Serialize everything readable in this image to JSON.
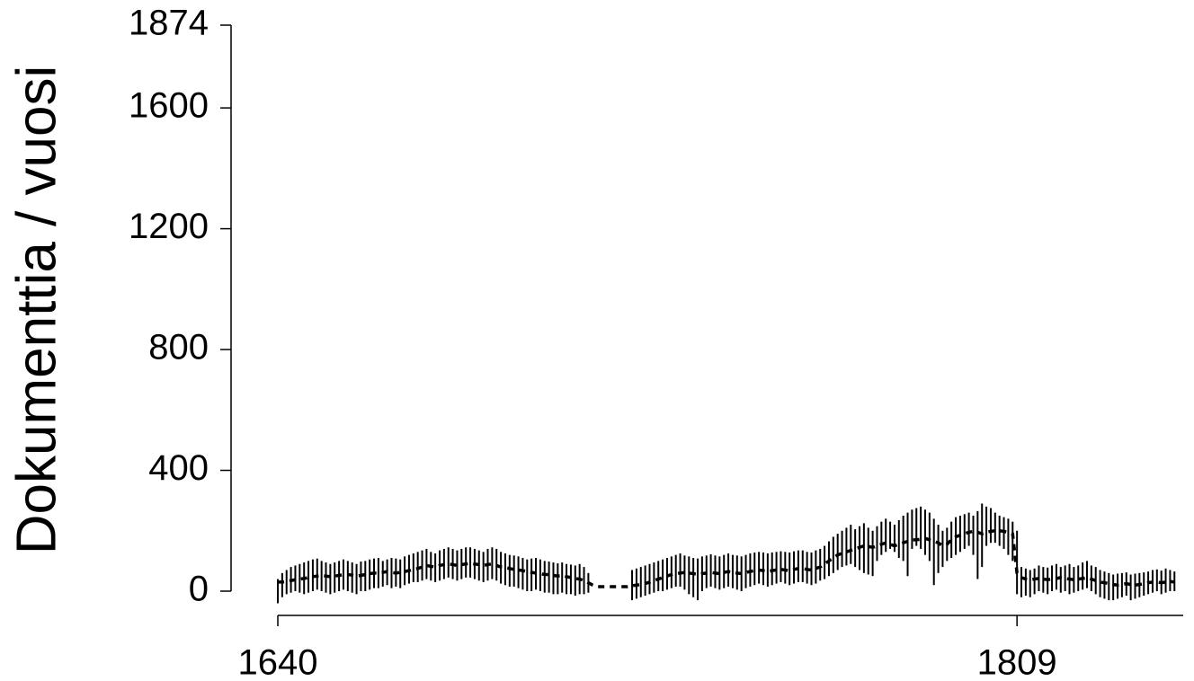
{
  "chart_data": {
    "type": "errorline",
    "y_label": "Dokumenttia / vuosi",
    "xlim": [
      1640,
      1847
    ],
    "xticks": [
      1640,
      1809
    ],
    "ylim": [
      0,
      1874
    ],
    "yticks": [
      0,
      400,
      800,
      1200,
      1600,
      1874
    ],
    "color": "#000000",
    "x": [
      1640,
      1641,
      1642,
      1643,
      1644,
      1645,
      1646,
      1647,
      1648,
      1649,
      1650,
      1651,
      1652,
      1653,
      1654,
      1655,
      1656,
      1657,
      1658,
      1659,
      1660,
      1661,
      1662,
      1663,
      1664,
      1665,
      1666,
      1667,
      1668,
      1669,
      1670,
      1671,
      1672,
      1673,
      1674,
      1675,
      1676,
      1677,
      1678,
      1679,
      1680,
      1681,
      1682,
      1683,
      1684,
      1685,
      1686,
      1687,
      1688,
      1689,
      1690,
      1691,
      1692,
      1693,
      1694,
      1695,
      1696,
      1697,
      1698,
      1699,
      1700,
      1701,
      1702,
      1703,
      1704,
      1705,
      1706,
      1707,
      1708,
      1709,
      1710,
      1711,
      1712,
      1713,
      1714,
      1715,
      1716,
      1717,
      1718,
      1719,
      1720,
      1721,
      1722,
      1723,
      1724,
      1725,
      1726,
      1727,
      1728,
      1729,
      1730,
      1731,
      1732,
      1733,
      1734,
      1735,
      1736,
      1737,
      1738,
      1739,
      1740,
      1741,
      1742,
      1743,
      1744,
      1745,
      1746,
      1747,
      1748,
      1749,
      1750,
      1751,
      1752,
      1753,
      1754,
      1755,
      1756,
      1757,
      1758,
      1759,
      1760,
      1761,
      1762,
      1763,
      1764,
      1765,
      1766,
      1767,
      1768,
      1769,
      1770,
      1771,
      1772,
      1773,
      1774,
      1775,
      1776,
      1777,
      1778,
      1779,
      1780,
      1781,
      1782,
      1783,
      1784,
      1785,
      1786,
      1787,
      1788,
      1789,
      1790,
      1791,
      1792,
      1793,
      1794,
      1795,
      1796,
      1797,
      1798,
      1799,
      1800,
      1801,
      1802,
      1803,
      1804,
      1805,
      1806,
      1807,
      1808,
      1809,
      1810,
      1811,
      1812,
      1813,
      1814,
      1815,
      1816,
      1817,
      1818,
      1819,
      1820,
      1821,
      1822,
      1823,
      1824,
      1825,
      1826,
      1827,
      1828,
      1829,
      1830,
      1831,
      1832,
      1833,
      1834,
      1835,
      1836,
      1837,
      1838,
      1839,
      1840,
      1841,
      1842,
      1843,
      1844,
      1845
    ],
    "values": [
      30,
      30,
      32,
      35,
      38,
      40,
      42,
      45,
      48,
      50,
      52,
      50,
      48,
      50,
      52,
      55,
      55,
      53,
      50,
      52,
      55,
      58,
      60,
      60,
      62,
      65,
      62,
      60,
      62,
      65,
      68,
      72,
      75,
      80,
      85,
      82,
      80,
      85,
      88,
      90,
      88,
      85,
      88,
      90,
      92,
      90,
      88,
      85,
      88,
      90,
      85,
      80,
      78,
      75,
      72,
      70,
      68,
      65,
      62,
      60,
      58,
      55,
      55,
      52,
      50,
      52,
      48,
      45,
      42,
      40,
      35,
      28,
      20,
      15,
      15,
      15,
      15,
      15,
      15,
      15,
      15,
      18,
      20,
      22,
      25,
      30,
      35,
      40,
      45,
      50,
      55,
      58,
      60,
      62,
      60,
      58,
      55,
      58,
      60,
      62,
      60,
      58,
      62,
      65,
      62,
      60,
      58,
      62,
      65,
      68,
      70,
      68,
      65,
      68,
      70,
      72,
      70,
      68,
      72,
      75,
      75,
      72,
      70,
      75,
      80,
      90,
      100,
      110,
      120,
      125,
      130,
      135,
      140,
      145,
      150,
      148,
      145,
      150,
      155,
      160,
      155,
      150,
      155,
      160,
      165,
      170,
      170,
      172,
      175,
      170,
      165,
      160,
      150,
      155,
      170,
      180,
      185,
      190,
      195,
      198,
      195,
      190,
      195,
      198,
      200,
      200,
      198,
      195,
      190,
      60,
      45,
      40,
      38,
      40,
      42,
      40,
      38,
      40,
      42,
      45,
      42,
      40,
      38,
      40,
      42,
      45,
      40,
      35,
      30,
      28,
      25,
      22,
      20,
      22,
      25,
      22,
      20,
      22,
      25,
      28,
      30,
      30,
      28,
      30,
      32,
      30
    ],
    "highs": [
      40,
      60,
      70,
      80,
      85,
      90,
      95,
      100,
      105,
      108,
      100,
      95,
      90,
      95,
      100,
      105,
      100,
      95,
      90,
      98,
      100,
      105,
      108,
      110,
      100,
      105,
      110,
      108,
      105,
      115,
      120,
      125,
      130,
      135,
      140,
      130,
      125,
      135,
      140,
      145,
      140,
      135,
      140,
      145,
      145,
      140,
      135,
      130,
      140,
      145,
      140,
      130,
      125,
      120,
      118,
      115,
      110,
      105,
      108,
      110,
      105,
      100,
      98,
      95,
      92,
      95,
      90,
      88,
      85,
      90,
      80,
      60,
      null,
      null,
      null,
      null,
      null,
      null,
      null,
      null,
      null,
      70,
      75,
      80,
      85,
      90,
      95,
      100,
      105,
      110,
      115,
      120,
      125,
      118,
      115,
      110,
      108,
      115,
      118,
      122,
      118,
      115,
      120,
      125,
      120,
      118,
      115,
      120,
      125,
      128,
      130,
      128,
      125,
      128,
      130,
      132,
      130,
      128,
      132,
      135,
      135,
      130,
      128,
      135,
      140,
      150,
      165,
      180,
      190,
      200,
      210,
      220,
      205,
      215,
      225,
      210,
      200,
      215,
      230,
      240,
      230,
      220,
      235,
      250,
      260,
      270,
      275,
      280,
      270,
      260,
      240,
      220,
      200,
      210,
      230,
      245,
      250,
      255,
      260,
      250,
      265,
      290,
      280,
      275,
      260,
      250,
      245,
      240,
      230,
      200,
      80,
      75,
      70,
      75,
      85,
      80,
      78,
      85,
      90,
      80,
      85,
      90,
      80,
      85,
      95,
      100,
      85,
      80,
      70,
      65,
      60,
      55,
      58,
      60,
      62,
      55,
      58,
      60,
      62,
      65,
      70,
      72,
      68,
      75,
      70,
      65
    ],
    "lows": [
      -40,
      -20,
      -10,
      -5,
      0,
      -5,
      -10,
      -5,
      0,
      5,
      0,
      -5,
      -10,
      -5,
      0,
      5,
      0,
      -5,
      -10,
      0,
      0,
      5,
      10,
      10,
      15,
      20,
      10,
      15,
      10,
      20,
      25,
      30,
      30,
      35,
      40,
      35,
      30,
      35,
      40,
      45,
      40,
      35,
      40,
      45,
      45,
      40,
      35,
      30,
      35,
      40,
      35,
      25,
      20,
      15,
      15,
      10,
      5,
      0,
      0,
      5,
      0,
      -5,
      -5,
      -10,
      -10,
      -5,
      -10,
      -10,
      -15,
      -10,
      -10,
      -5,
      null,
      null,
      null,
      null,
      null,
      null,
      null,
      null,
      null,
      -30,
      -25,
      -20,
      -15,
      -10,
      -5,
      0,
      0,
      5,
      10,
      15,
      15,
      5,
      -10,
      -20,
      -30,
      0,
      10,
      15,
      10,
      5,
      10,
      15,
      10,
      5,
      0,
      10,
      15,
      20,
      25,
      20,
      15,
      20,
      25,
      30,
      25,
      20,
      25,
      30,
      30,
      25,
      20,
      25,
      35,
      40,
      50,
      60,
      70,
      80,
      85,
      90,
      80,
      70,
      60,
      55,
      50,
      100,
      120,
      130,
      140,
      130,
      110,
      100,
      50,
      140,
      150,
      140,
      120,
      100,
      20,
      60,
      80,
      100,
      110,
      120,
      130,
      140,
      150,
      120,
      40,
      80,
      150,
      160,
      160,
      150,
      140,
      120,
      100,
      -10,
      -20,
      -15,
      -20,
      -10,
      0,
      -5,
      -10,
      0,
      5,
      -5,
      0,
      -10,
      -5,
      0,
      5,
      10,
      0,
      -10,
      -20,
      -25,
      -30,
      -30,
      -25,
      -20,
      -15,
      -30,
      -25,
      -20,
      -15,
      -10,
      -5,
      0,
      -10,
      -5,
      0,
      0
    ]
  }
}
